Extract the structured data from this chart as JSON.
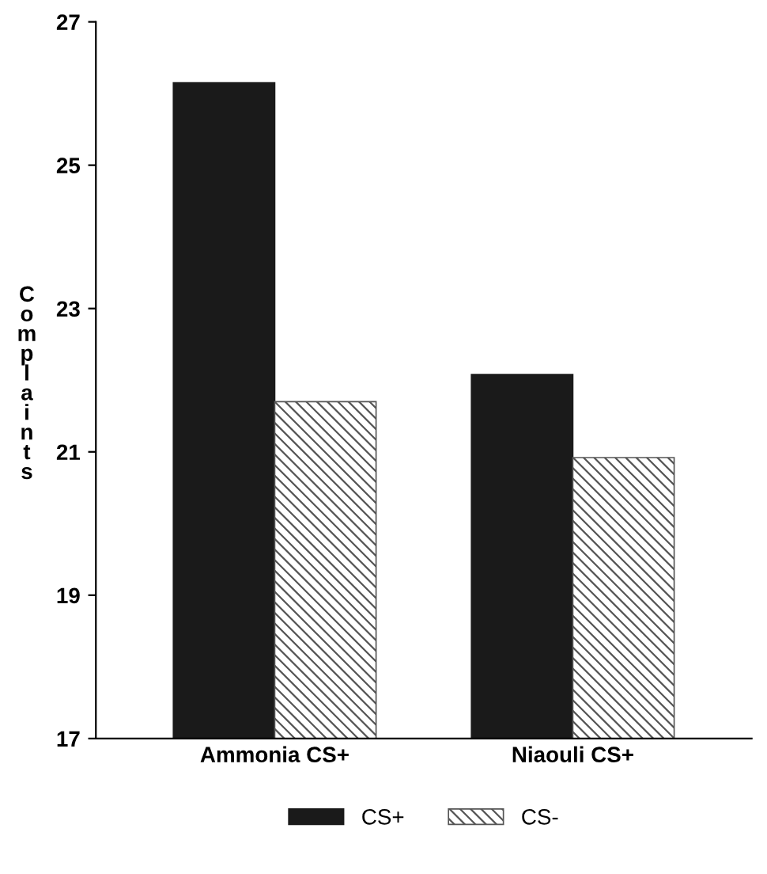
{
  "chart_data": {
    "type": "bar",
    "ylabel": "Complaints",
    "categories": [
      "Ammonia CS+",
      "Niaouli CS+"
    ],
    "series": [
      {
        "name": "CS+",
        "color": "#1a1a1a",
        "values": [
          26.15,
          22.08
        ]
      },
      {
        "name": "CS-",
        "color": "#555555",
        "values": [
          21.7,
          20.92
        ]
      }
    ],
    "ylim": [
      17,
      27
    ],
    "yticks": [
      17,
      19,
      21,
      23,
      25,
      27
    ],
    "grid": false,
    "legend": "bottom"
  }
}
